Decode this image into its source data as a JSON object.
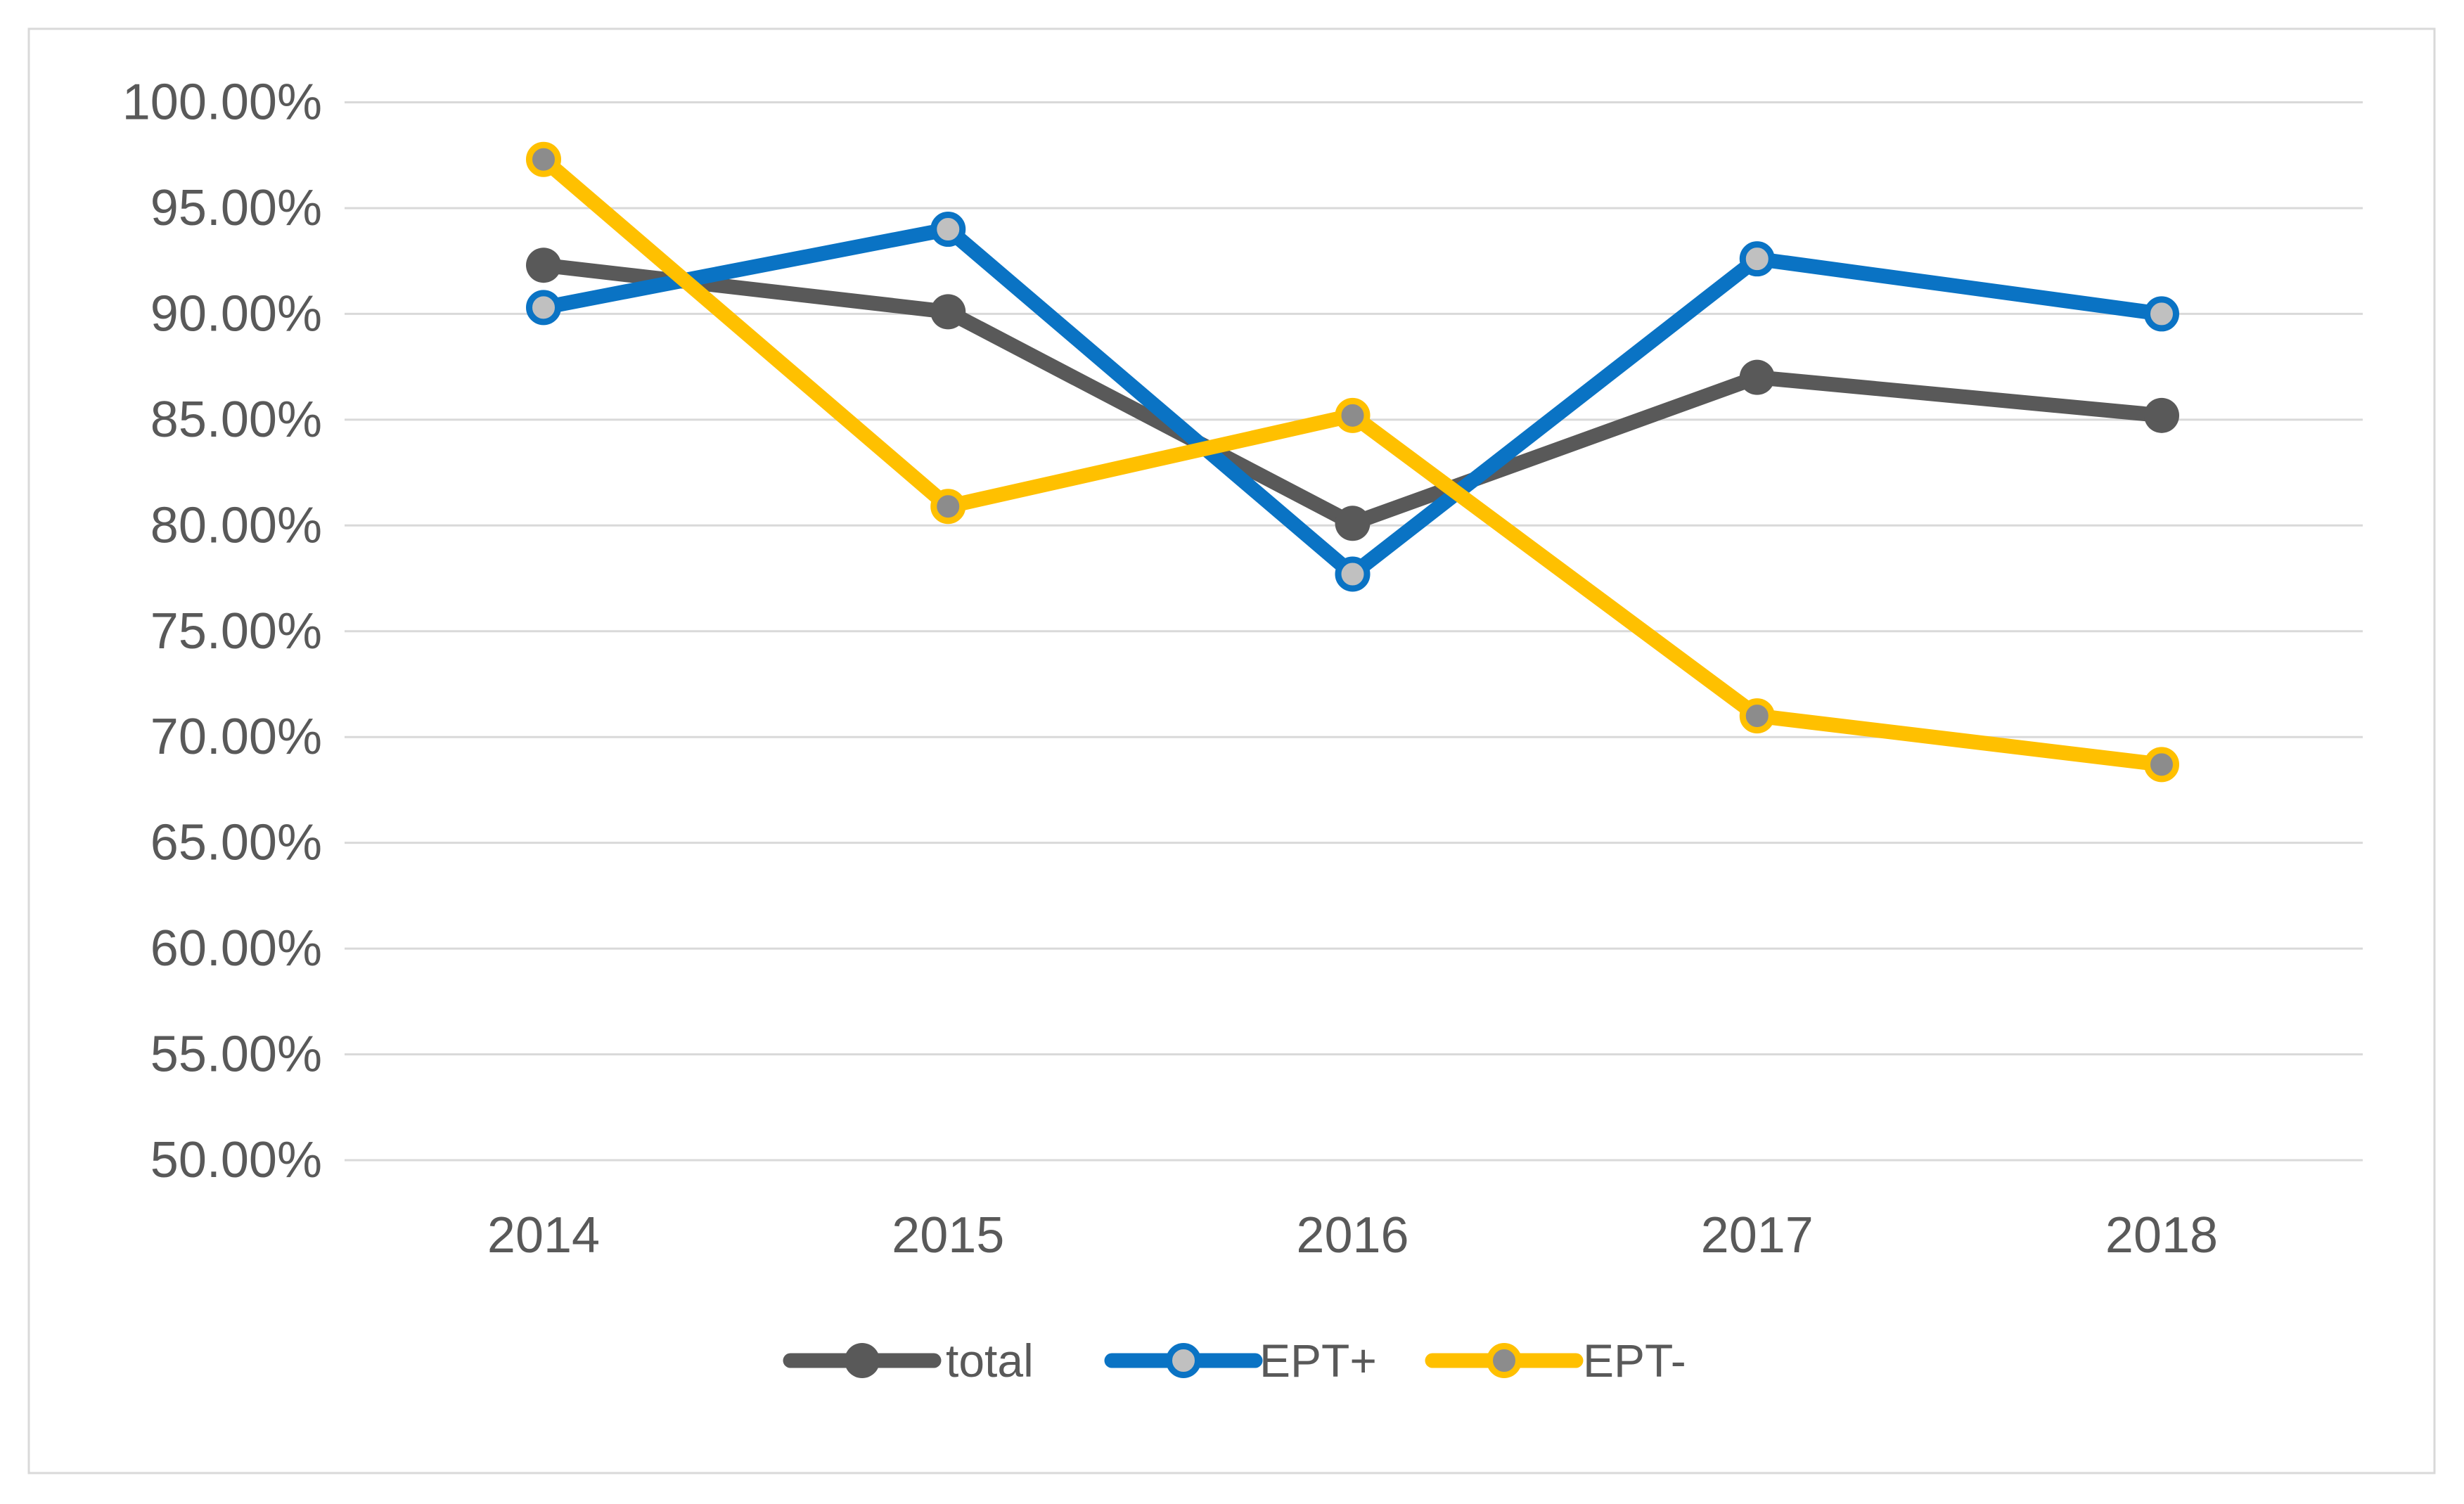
{
  "chart_data": {
    "type": "line",
    "title": "",
    "categories": [
      "2014",
      "2015",
      "2016",
      "2017",
      "2018"
    ],
    "series": [
      {
        "name": "total",
        "color": "#595959",
        "marker_style": "solid",
        "marker_fill": "#595959",
        "values": [
          92.3,
          90.1,
          80.1,
          87.0,
          85.2
        ]
      },
      {
        "name": "EPT+",
        "color": "#0A73C4",
        "marker_style": "ring",
        "marker_fill": "#C0C0C0",
        "values": [
          90.3,
          94.0,
          77.7,
          92.6,
          90.0
        ]
      },
      {
        "name": "EPT-",
        "color": "#FFC000",
        "marker_style": "ring",
        "marker_fill": "#8C8C8C",
        "values": [
          97.3,
          80.9,
          85.2,
          71.0,
          68.7
        ]
      }
    ],
    "x_axis": {
      "tick_labels": [
        "2014",
        "2015",
        "2016",
        "2017",
        "2018"
      ]
    },
    "y_axis": {
      "min": 50,
      "max": 100,
      "step": 5,
      "tick_labels": [
        "100.00%",
        "95.00%",
        "90.00%",
        "85.00%",
        "80.00%",
        "75.00%",
        "70.00%",
        "65.00%",
        "60.00%",
        "55.00%",
        "50.00%"
      ]
    },
    "legend": {
      "position": "bottom",
      "entries": [
        "total",
        "EPT+",
        "EPT-"
      ]
    },
    "grid": true,
    "ylim": [
      50,
      100
    ],
    "colors": {
      "background": "#FFFFFF",
      "gridline": "#D9D9D9",
      "frame": "#D9D9D9",
      "text": "#595959"
    }
  }
}
